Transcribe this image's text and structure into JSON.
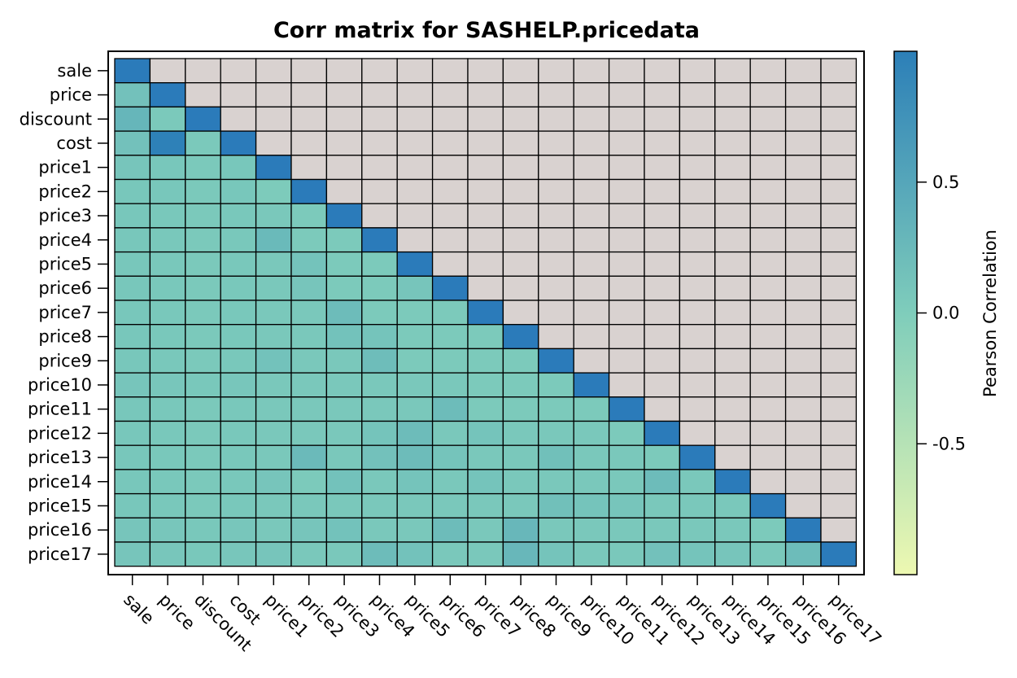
{
  "chart_data": {
    "type": "heatmap",
    "title": "Corr matrix for SASHELP.pricedata",
    "variables": [
      "sale",
      "price",
      "discount",
      "cost",
      "price1",
      "price2",
      "price3",
      "price4",
      "price5",
      "price6",
      "price7",
      "price8",
      "price9",
      "price10",
      "price11",
      "price12",
      "price13",
      "price14",
      "price15",
      "price16",
      "price17"
    ],
    "matrix_shape": "lower-triangular",
    "masked_cell_color": "#d9d2d0",
    "diagonal_color": "#2b7bba",
    "colorbar": {
      "label": "Pearson Correlation",
      "ticks": [
        "0.5",
        "0.0",
        "-0.5"
      ],
      "tick_values": [
        0.5,
        0.0,
        -0.5
      ],
      "range": [
        -1,
        1
      ],
      "colors": [
        "#edf8b1",
        "#7fcdbb",
        "#2c7fb8"
      ]
    },
    "values": [
      [
        1.0
      ],
      [
        0.15,
        1.0
      ],
      [
        0.3,
        0.05,
        1.0
      ],
      [
        0.15,
        0.98,
        0.05,
        1.0
      ],
      [
        0.1,
        0.08,
        0.05,
        0.08,
        1.0
      ],
      [
        0.08,
        0.08,
        0.05,
        0.08,
        0.02,
        1.0
      ],
      [
        0.08,
        0.07,
        0.05,
        0.07,
        0.06,
        0.04,
        1.0
      ],
      [
        0.08,
        0.07,
        0.05,
        0.07,
        0.25,
        0.04,
        0.04,
        1.0
      ],
      [
        0.08,
        0.07,
        0.05,
        0.07,
        0.06,
        0.13,
        0.04,
        0.04,
        1.0
      ],
      [
        0.08,
        0.07,
        0.05,
        0.07,
        0.06,
        0.1,
        0.04,
        0.04,
        0.1,
        1.0
      ],
      [
        0.08,
        0.07,
        0.05,
        0.07,
        0.06,
        0.06,
        0.22,
        0.04,
        0.04,
        0.04,
        1.0
      ],
      [
        0.08,
        0.07,
        0.05,
        0.07,
        0.06,
        0.06,
        0.14,
        0.12,
        0.04,
        0.04,
        0.04,
        1.0
      ],
      [
        0.08,
        0.07,
        0.05,
        0.07,
        0.14,
        0.06,
        0.06,
        0.2,
        0.04,
        0.04,
        0.04,
        0.04,
        1.0
      ],
      [
        0.1,
        0.09,
        0.07,
        0.09,
        0.06,
        0.06,
        0.06,
        0.06,
        0.06,
        0.06,
        0.04,
        0.04,
        0.04,
        1.0
      ],
      [
        0.08,
        0.07,
        0.05,
        0.07,
        0.06,
        0.06,
        0.06,
        0.06,
        0.06,
        0.22,
        0.04,
        0.04,
        0.04,
        0.04,
        1.0
      ],
      [
        0.08,
        0.07,
        0.05,
        0.07,
        0.06,
        0.06,
        0.06,
        0.12,
        0.22,
        0.06,
        0.12,
        0.06,
        0.06,
        0.06,
        0.04,
        1.0
      ],
      [
        0.08,
        0.07,
        0.05,
        0.07,
        0.06,
        0.24,
        0.06,
        0.15,
        0.22,
        0.12,
        0.06,
        0.06,
        0.17,
        0.06,
        0.06,
        0.04,
        1.0
      ],
      [
        0.08,
        0.07,
        0.05,
        0.07,
        0.1,
        0.04,
        0.14,
        0.06,
        0.12,
        0.06,
        0.12,
        0.06,
        0.06,
        0.06,
        0.06,
        0.22,
        0.06,
        1.0
      ],
      [
        0.08,
        0.07,
        0.05,
        0.07,
        0.06,
        0.06,
        0.06,
        0.06,
        0.06,
        0.06,
        0.06,
        0.06,
        0.17,
        0.12,
        0.1,
        0.06,
        0.06,
        0.06,
        1.0
      ],
      [
        0.1,
        0.09,
        0.07,
        0.09,
        0.06,
        0.1,
        0.14,
        0.06,
        0.06,
        0.22,
        0.06,
        0.28,
        0.06,
        0.06,
        0.06,
        0.06,
        0.06,
        0.06,
        0.04,
        1.0
      ],
      [
        0.1,
        0.09,
        0.07,
        0.09,
        0.1,
        0.06,
        0.06,
        0.22,
        0.14,
        0.06,
        0.06,
        0.28,
        0.12,
        0.06,
        0.06,
        0.15,
        0.12,
        0.1,
        0.06,
        0.22,
        1.0
      ]
    ]
  }
}
